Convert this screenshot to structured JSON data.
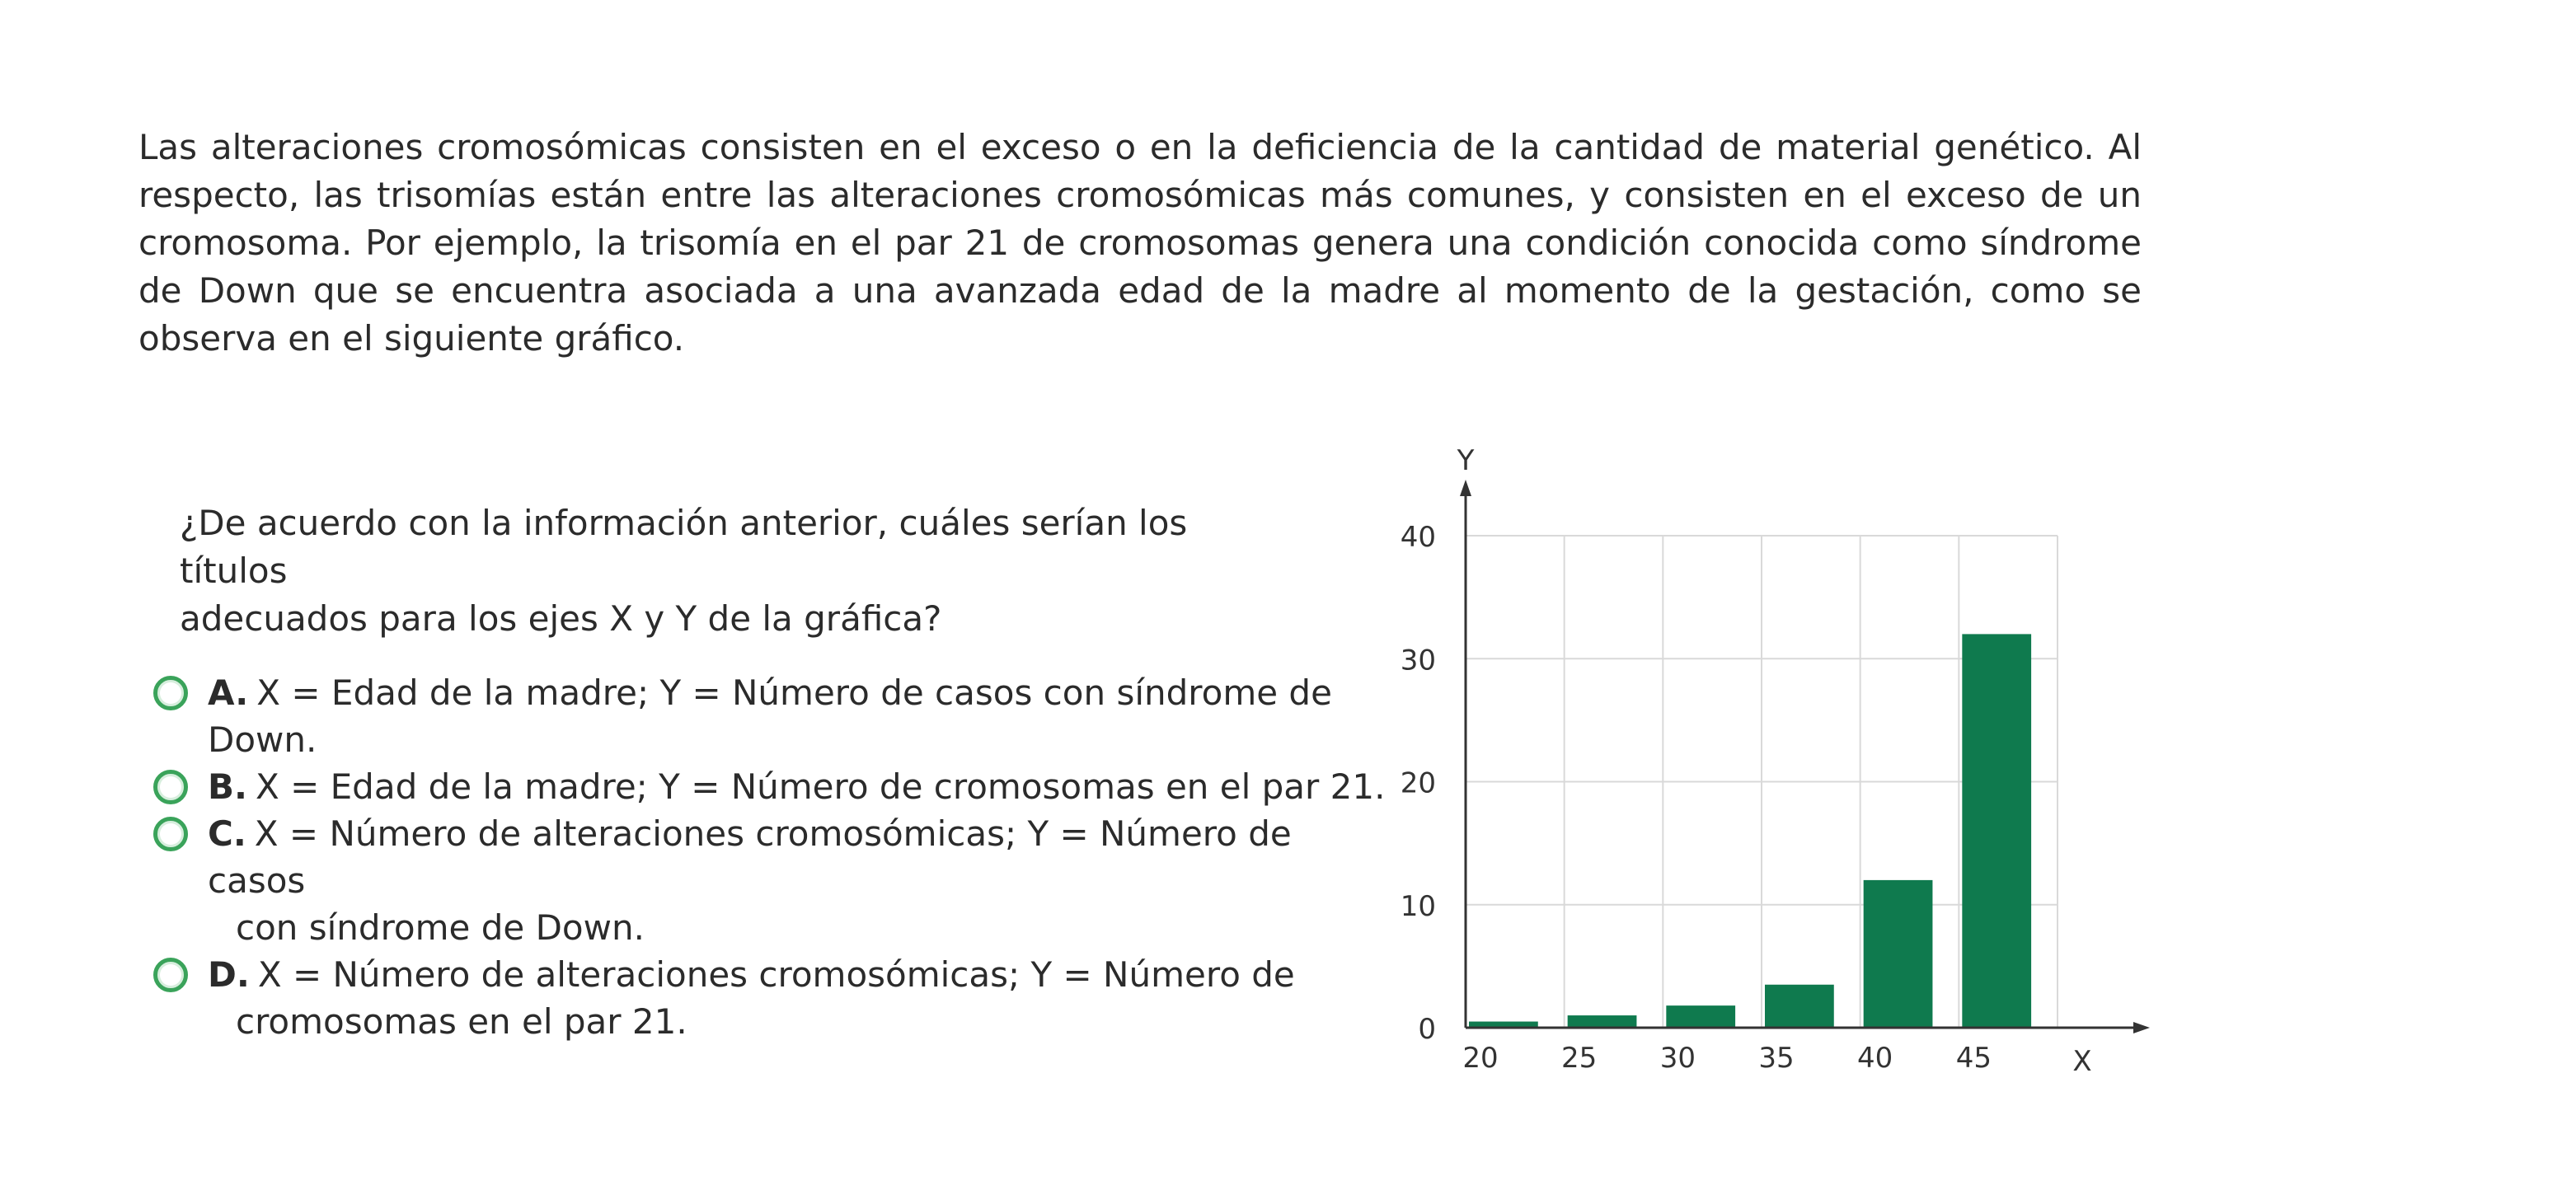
{
  "intro_text": "Las alteraciones cromosómicas consisten en el exceso o en la deficiencia de la cantidad de material genético. Al respecto, las trisomías están entre las alteraciones cromosómicas más comunes, y consisten en el exceso de un cromosoma. Por ejemplo, la trisomía en el par 21 de cromosomas genera una condición conocida como síndrome de Down que se encuentra asociada a una avanzada edad de la madre al momento de la gestación, como se observa en el siguiente gráfico.",
  "question": {
    "line1": "¿De acuerdo con la información anterior, cuáles serían los títulos",
    "line2": "adecuados para los ejes X y Y de la gráfica?"
  },
  "options": [
    {
      "letter": "A.",
      "text": "X = Edad de la madre; Y = Número de casos con síndrome de Down.",
      "cont": ""
    },
    {
      "letter": "B.",
      "text": "X = Edad de la madre; Y = Número de cromosomas en el par 21.",
      "cont": ""
    },
    {
      "letter": "C.",
      "text": "X = Número de alteraciones cromosómicas; Y = Número de casos",
      "cont": "con síndrome de Down."
    },
    {
      "letter": "D.",
      "text": "X = Número de alteraciones cromosómicas; Y = Número de",
      "cont": "cromosomas en el par 21."
    }
  ],
  "colors": {
    "bar": "#0f7a4e",
    "grid": "#d9d9d9",
    "axis": "#333333",
    "radio": "#3aa35a"
  },
  "chart_data": {
    "type": "bar",
    "categories": [
      "20",
      "25",
      "30",
      "35",
      "40",
      "45"
    ],
    "values": [
      0.5,
      1,
      1.8,
      3.5,
      12,
      32
    ],
    "xlabel": "X",
    "ylabel": "Y",
    "ylim": [
      0,
      40
    ],
    "yticks": [
      0,
      10,
      20,
      30,
      40
    ],
    "grid": true,
    "legend": "none"
  }
}
